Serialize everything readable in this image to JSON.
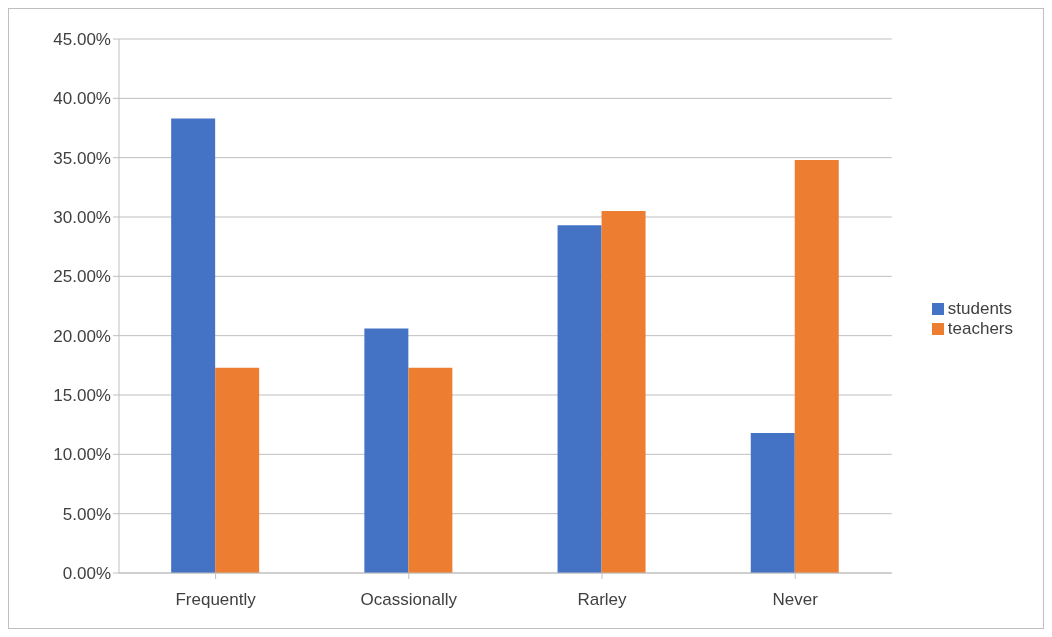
{
  "chart_data": {
    "type": "bar",
    "categories": [
      "Frequently",
      "Ocassionally",
      "Rarley",
      "Never"
    ],
    "series": [
      {
        "name": "students",
        "color": "#4472c4",
        "values": [
          38.3,
          20.6,
          29.3,
          11.8
        ]
      },
      {
        "name": "teachers",
        "color": "#ed7d31",
        "values": [
          17.3,
          17.3,
          30.5,
          34.8
        ]
      }
    ],
    "ylim": [
      0,
      45
    ],
    "yticks": [
      {
        "value": 0,
        "label": "0.00%"
      },
      {
        "value": 5,
        "label": "5.00%"
      },
      {
        "value": 10,
        "label": "10.00%"
      },
      {
        "value": 15,
        "label": "15.00%"
      },
      {
        "value": 20,
        "label": "20.00%"
      },
      {
        "value": 25,
        "label": "25.00%"
      },
      {
        "value": 30,
        "label": "30.00%"
      },
      {
        "value": 35,
        "label": "35.00%"
      },
      {
        "value": 40,
        "label": "40.00%"
      },
      {
        "value": 45,
        "label": "45.00%"
      }
    ],
    "grid": "y",
    "legend": "right"
  }
}
